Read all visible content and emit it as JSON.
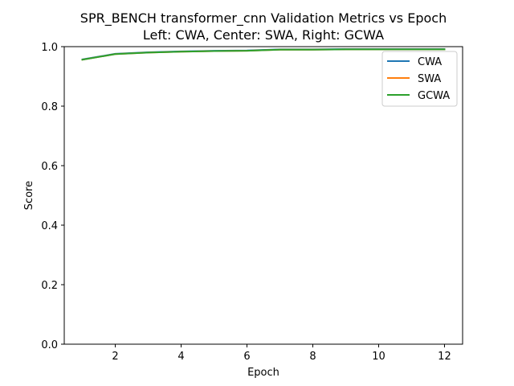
{
  "chart_data": {
    "type": "line",
    "title": "SPR_BENCH transformer_cnn Validation Metrics vs Epoch",
    "subtitle": "Left: CWA, Center: SWA, Right: GCWA",
    "xlabel": "Epoch",
    "ylabel": "Score",
    "xlim": [
      0.45,
      12.55
    ],
    "ylim": [
      0.0,
      1.0
    ],
    "xticks": [
      2,
      4,
      6,
      8,
      10,
      12
    ],
    "yticks": [
      0.0,
      0.2,
      0.4,
      0.6,
      0.8,
      1.0
    ],
    "x": [
      1,
      2,
      3,
      4,
      5,
      6,
      7,
      8,
      9,
      10,
      11,
      12
    ],
    "series": [
      {
        "name": "CWA",
        "color": "#1f77b4",
        "values": [
          0.957,
          0.976,
          0.981,
          0.984,
          0.986,
          0.987,
          0.991,
          0.991,
          0.992,
          0.992,
          0.992,
          0.992
        ]
      },
      {
        "name": "SWA",
        "color": "#ff7f0e",
        "values": [
          0.956,
          0.975,
          0.98,
          0.983,
          0.985,
          0.986,
          0.99,
          0.99,
          0.991,
          0.991,
          0.991,
          0.991
        ]
      },
      {
        "name": "GCWA",
        "color": "#2ca02c",
        "values": [
          0.956,
          0.975,
          0.98,
          0.983,
          0.985,
          0.986,
          0.99,
          0.99,
          0.991,
          0.991,
          0.991,
          0.991
        ]
      }
    ],
    "grid": false,
    "legend_position": "top-right"
  }
}
